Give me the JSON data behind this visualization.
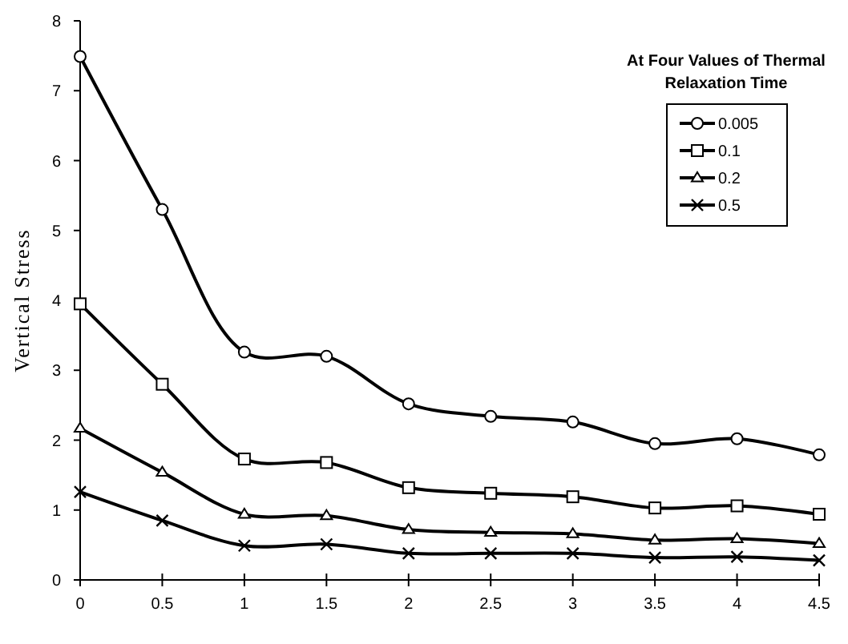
{
  "chart_data": {
    "type": "line",
    "ylabel": "Vertical Stress",
    "legend_title": "At Four Values of Thermal Relaxation Time",
    "legend": "top right",
    "grid": false,
    "line_style": "solid",
    "x": [
      0,
      0.5,
      1,
      1.5,
      2,
      2.5,
      3,
      3.5,
      4,
      4.5
    ],
    "xlim": [
      0,
      4.5
    ],
    "xticks": [
      0,
      0.5,
      1,
      1.5,
      2,
      2.5,
      3,
      3.5,
      4,
      4.5
    ],
    "ylim": [
      0,
      8
    ],
    "yticks": [
      0,
      1,
      2,
      3,
      4,
      5,
      6,
      7,
      8
    ],
    "series": [
      {
        "name": "0.005",
        "color": "#000000",
        "marker": "circle",
        "values": [
          7.49,
          5.3,
          3.26,
          3.2,
          2.52,
          2.34,
          2.26,
          1.95,
          2.02,
          1.79
        ]
      },
      {
        "name": "0.1",
        "color": "#000000",
        "marker": "square",
        "values": [
          3.95,
          2.8,
          1.73,
          1.68,
          1.32,
          1.24,
          1.19,
          1.03,
          1.06,
          0.94
        ]
      },
      {
        "name": "0.2",
        "color": "#000000",
        "marker": "triangle",
        "values": [
          2.17,
          1.54,
          0.94,
          0.92,
          0.72,
          0.68,
          0.66,
          0.57,
          0.59,
          0.52
        ]
      },
      {
        "name": "0.5",
        "color": "#000000",
        "marker": "cross",
        "values": [
          1.26,
          0.85,
          0.49,
          0.51,
          0.38,
          0.38,
          0.38,
          0.32,
          0.33,
          0.28
        ]
      }
    ]
  }
}
